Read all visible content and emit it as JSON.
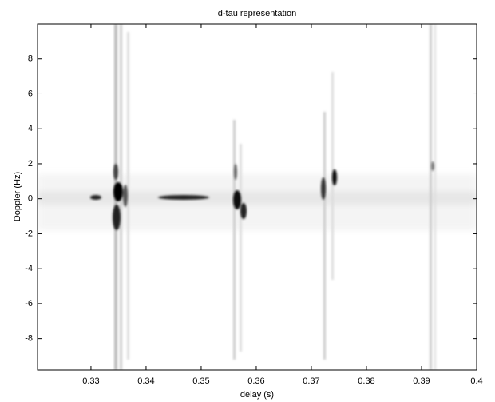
{
  "chart_data": {
    "type": "heatmap",
    "title": "d-tau representation",
    "x_label": "delay (s)",
    "y_label": "Doppler (Hz)",
    "xlim": [
      0.3203,
      0.4
    ],
    "xticks": [
      0.33,
      0.34,
      0.35,
      0.36,
      0.37,
      0.38,
      0.39,
      0.4
    ],
    "ylim": [
      -9.8,
      10
    ],
    "yticks": [
      -8,
      -6,
      -4,
      -2,
      0,
      2,
      4,
      6,
      8
    ],
    "colormap": "gray-reversed"
  }
}
